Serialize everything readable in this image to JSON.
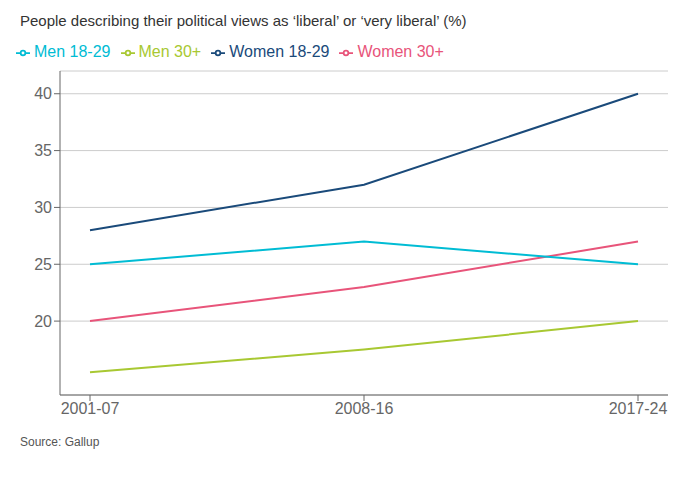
{
  "chart_data": {
    "type": "line",
    "title": "People describing their political views as ‘liberal’ or ‘very liberal’ (%)",
    "annotations": [
      "Source: Gallup"
    ],
    "categories": [
      "2001-07",
      "2008-16",
      "2017-24"
    ],
    "series": [
      {
        "name": "Women 18-29",
        "color": "#1a4a7a",
        "values": [
          28,
          32,
          40
        ]
      },
      {
        "name": "Women 30+",
        "color": "#e8547a",
        "values": [
          20,
          23,
          27
        ]
      },
      {
        "name": "Men 18-29",
        "color": "#00bcd4",
        "values": [
          25,
          27,
          25
        ]
      },
      {
        "name": "Men 30+",
        "color": "#a8c832",
        "values": [
          15.5,
          17.5,
          20
        ]
      }
    ],
    "ylim": [
      13.5,
      42
    ],
    "yticks": [
      20,
      25,
      30,
      35,
      40
    ],
    "grid": true,
    "legend": "top"
  }
}
